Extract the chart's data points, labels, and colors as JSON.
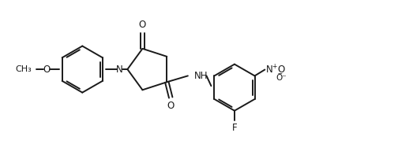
{
  "bg_color": "#ffffff",
  "line_color": "#1a1a1a",
  "line_width": 1.4,
  "font_size": 8.5,
  "figsize": [
    5.04,
    1.83
  ],
  "dpi": 100,
  "xlim": [
    0,
    504
  ],
  "ylim": [
    0,
    183
  ]
}
